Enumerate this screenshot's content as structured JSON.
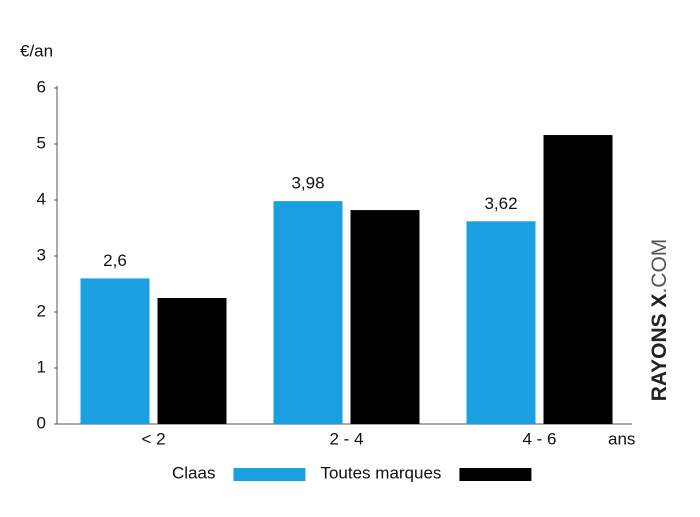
{
  "chart_data": {
    "type": "bar",
    "y_label": "€/an",
    "x_label": "ans",
    "categories": [
      "< 2",
      "2 - 4",
      "4 - 6"
    ],
    "series": [
      {
        "name": "Claas",
        "color": "#1a9fe0",
        "values": [
          2.6,
          3.98,
          3.62
        ],
        "value_labels": [
          "2,6",
          "3,98",
          "3,62"
        ]
      },
      {
        "name": "Toutes marques",
        "color": "#000000",
        "values": [
          2.25,
          3.82,
          5.16
        ]
      }
    ],
    "ylim": [
      0,
      6
    ],
    "yticks": [
      0,
      1,
      2,
      3,
      4,
      5,
      6
    ],
    "grid": false,
    "watermark": {
      "bold": "RAYONS X",
      "light": ".COM"
    }
  }
}
